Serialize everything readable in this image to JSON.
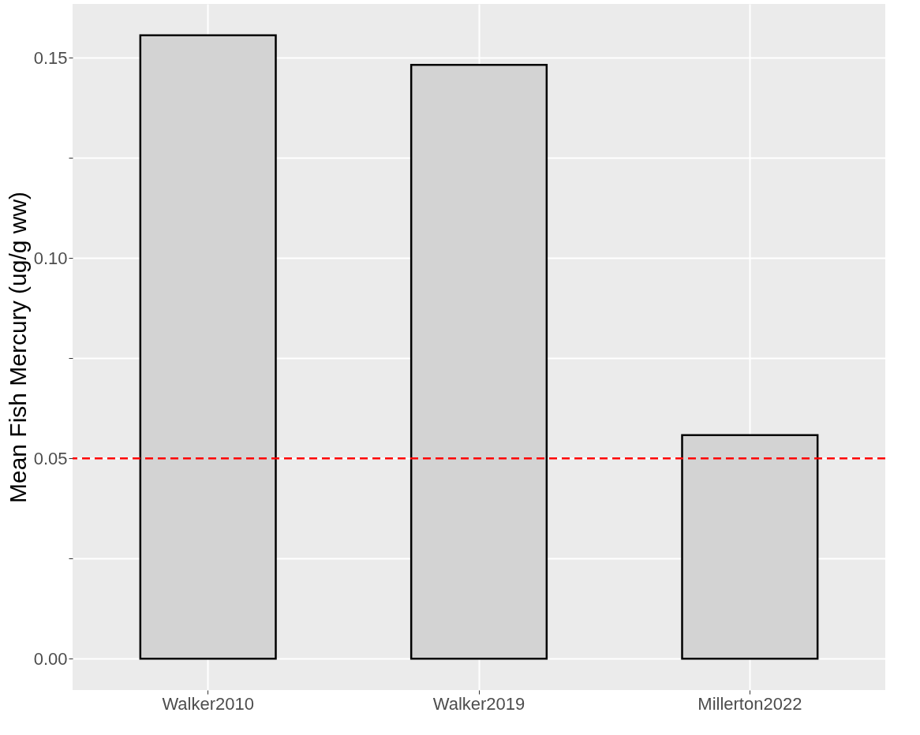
{
  "chart_data": {
    "type": "bar",
    "ylabel": "Mean Fish Mercury (ug/g ww)",
    "categories": [
      "Walker2010",
      "Walker2019",
      "Millerton2022"
    ],
    "series": [
      {
        "color": "#d3d3d3",
        "values": [
          0.1556,
          0.1482,
          0.0558
        ]
      }
    ],
    "ylim": [
      -0.0078,
      0.1634
    ],
    "yticks": [
      "0.00",
      {
        "value": 0.025,
        "label": null
      },
      {
        "value": 0.05,
        "label": "0.05"
      },
      {
        "value": 0.075,
        "label": null
      },
      {
        "value": 0.1,
        "label": "0.10"
      },
      {
        "value": 0.125,
        "label": null
      },
      {
        "value": 0.15,
        "label": "0.15"
      }
    ],
    "ref_lines": [
      {
        "axis": "y",
        "value": 0.05,
        "color": "#ff0000",
        "line_style": "dashed"
      }
    ],
    "grid": true
  }
}
